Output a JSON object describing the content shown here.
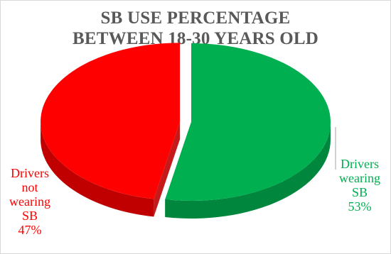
{
  "chart_data": {
    "type": "pie",
    "title": [
      "SB USE PERCENTAGE",
      "BETWEEN 18-30 YEARS OLD"
    ],
    "slices": [
      {
        "name": "Drivers wearing SB",
        "value": 53,
        "label_lines": [
          "Drivers",
          "wearing",
          "SB",
          "53%"
        ],
        "color": "#00b050",
        "side_color": "#00873d"
      },
      {
        "name": "Drivers not wearing SB",
        "value": 47,
        "label_lines": [
          "Drivers",
          "not",
          "wearing",
          "SB",
          "47%"
        ],
        "color": "#ff0000",
        "side_color": "#c00000"
      }
    ],
    "exploded_slice": "Drivers not wearing SB",
    "style": "3d"
  }
}
